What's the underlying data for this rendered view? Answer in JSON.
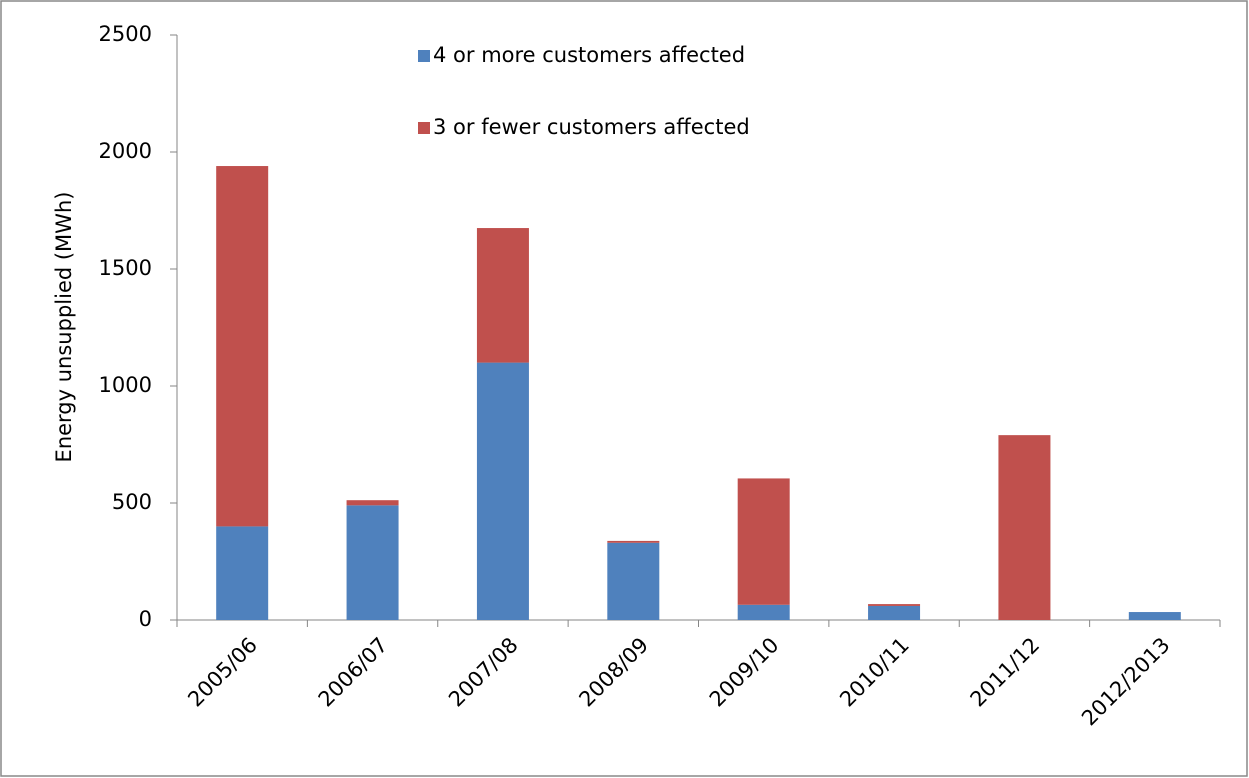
{
  "chart_data": {
    "type": "stacked-bar",
    "y_label": "Energy unsupplied (MWh)",
    "categories": [
      "2005/06",
      "2006/07",
      "2007/08",
      "2008/09",
      "2009/10",
      "2010/11",
      "2011/12",
      "2012/2013"
    ],
    "series": [
      {
        "name": "4 or more customers affected",
        "color": "#4f81bd",
        "values": [
          400,
          490,
          1100,
          330,
          65,
          60,
          0,
          34
        ]
      },
      {
        "name": "3 or fewer customers affected",
        "color": "#c0504d",
        "values": [
          1540,
          22,
          575,
          8,
          540,
          8,
          790,
          0
        ]
      }
    ],
    "ylim": [
      0,
      2500
    ],
    "yticks": [
      0,
      500,
      1000,
      1500,
      2000,
      2500
    ],
    "legend": "top",
    "grid": false
  }
}
